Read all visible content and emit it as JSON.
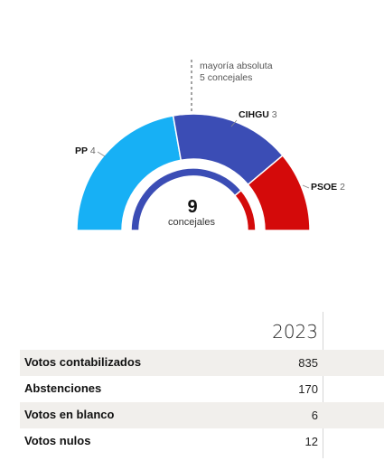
{
  "chart_data": {
    "type": "parliament-semicircle",
    "total_seats": 9,
    "majority_seats": 5,
    "majority_label": "mayoría absoluta",
    "majority_sublabel": "5 concejales",
    "center_value": "9",
    "center_label": "concejales",
    "parties": [
      {
        "name": "PP",
        "seats": 4,
        "color": "#17b0f5"
      },
      {
        "name": "CIHGU",
        "seats": 3,
        "color": "#3b4db5"
      },
      {
        "name": "PSOE",
        "seats": 2,
        "color": "#d40a0a"
      }
    ],
    "inner_ring": [
      {
        "seats": 7,
        "color": "#3b4db5"
      },
      {
        "seats": 2,
        "color": "#d40a0a"
      }
    ]
  },
  "results": {
    "year": "2023",
    "rows": [
      {
        "label": "Votos contabilizados",
        "value": "835"
      },
      {
        "label": "Abstenciones",
        "value": "170"
      },
      {
        "label": "Votos en blanco",
        "value": "6"
      },
      {
        "label": "Votos nulos",
        "value": "12"
      }
    ]
  }
}
